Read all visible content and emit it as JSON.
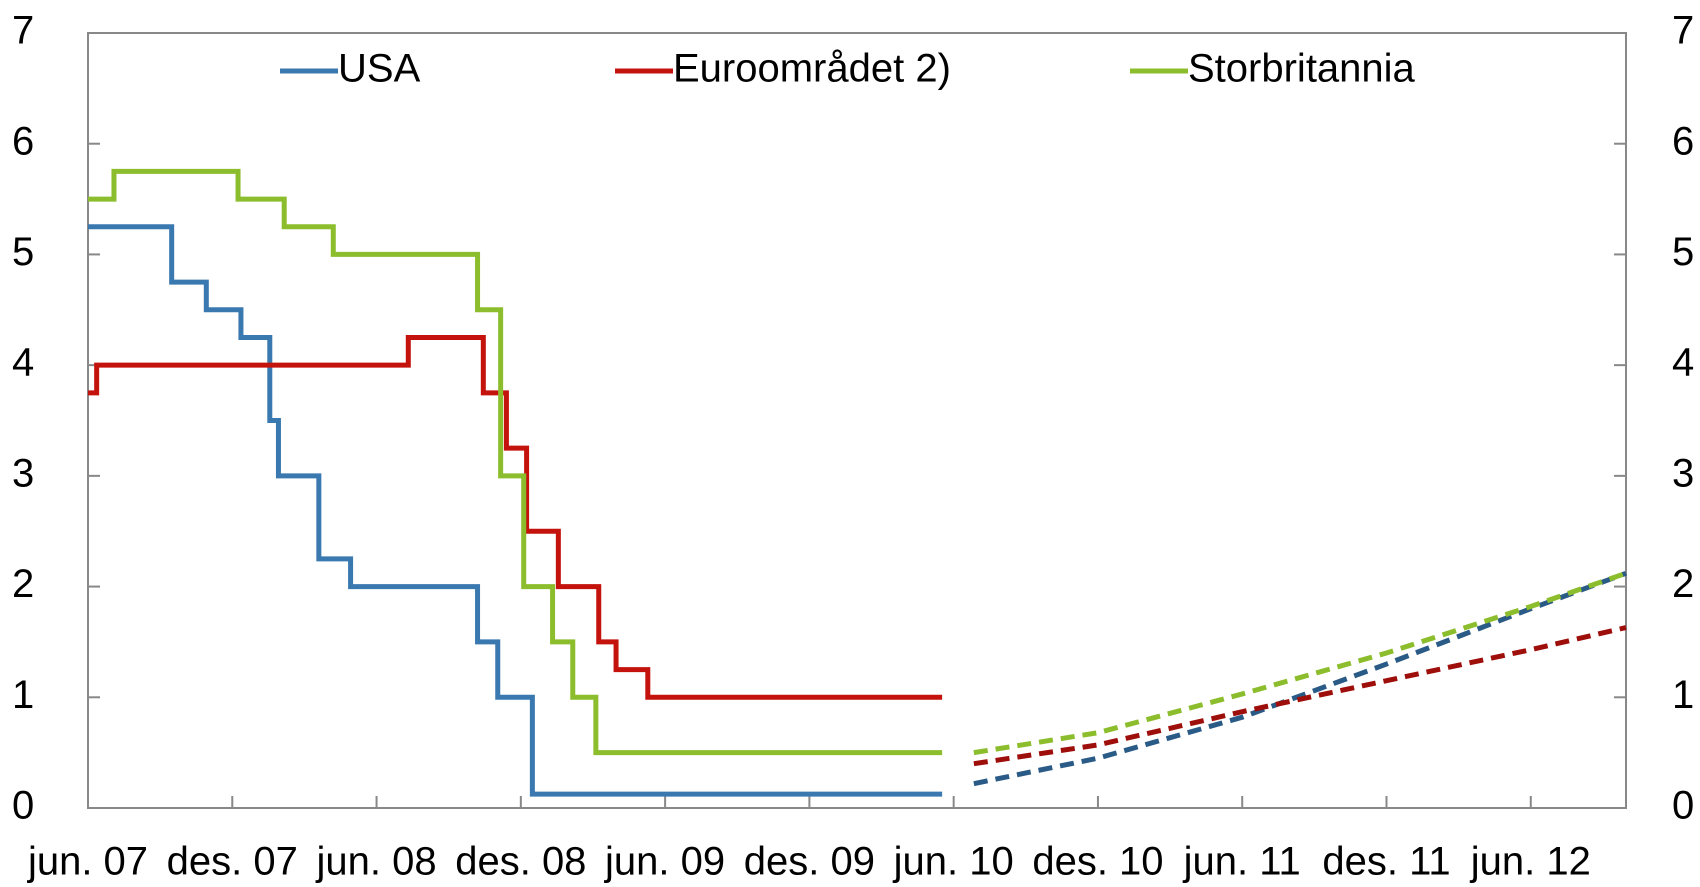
{
  "chart_data": {
    "type": "step",
    "xlim": [
      2007.42,
      2012.75
    ],
    "xticks": [
      {
        "value": 2007.42,
        "label": "jun. 07"
      },
      {
        "value": 2007.92,
        "label": "des. 07"
      },
      {
        "value": 2008.42,
        "label": "jun. 08"
      },
      {
        "value": 2008.92,
        "label": "des. 08"
      },
      {
        "value": 2009.42,
        "label": "jun. 09"
      },
      {
        "value": 2009.92,
        "label": "des. 09"
      },
      {
        "value": 2010.42,
        "label": "jun. 10"
      },
      {
        "value": 2010.92,
        "label": "des. 10"
      },
      {
        "value": 2011.42,
        "label": "jun. 11"
      },
      {
        "value": 2011.92,
        "label": "des. 11"
      },
      {
        "value": 2012.42,
        "label": "jun. 12"
      }
    ],
    "ylim": [
      0,
      7
    ],
    "yticks": [
      0,
      1,
      2,
      3,
      4,
      5,
      6,
      7
    ],
    "series": [
      {
        "name": "USA",
        "color": "#3a78b0",
        "x": [
          2007.42,
          2007.71,
          2007.83,
          2007.95,
          2008.05,
          2008.08,
          2008.22,
          2008.33,
          2008.77,
          2008.84,
          2008.96,
          2010.38
        ],
        "values": [
          5.25,
          4.75,
          4.5,
          4.25,
          3.5,
          3.0,
          2.25,
          2.0,
          1.5,
          1.0,
          0.125,
          0.125
        ],
        "forecast": {
          "color": "#2a5a86",
          "x": [
            2010.49,
            2010.92,
            2011.42,
            2011.92,
            2012.42,
            2012.75
          ],
          "values": [
            0.22,
            0.45,
            0.82,
            1.3,
            1.8,
            2.12
          ]
        }
      },
      {
        "name": "Euroområdet 2)",
        "color": "#c4120c",
        "x": [
          2007.42,
          2007.45,
          2008.53,
          2008.79,
          2008.87,
          2008.94,
          2009.05,
          2009.19,
          2009.25,
          2009.36,
          2010.38
        ],
        "values": [
          3.75,
          4.0,
          4.25,
          3.75,
          3.25,
          2.5,
          2.0,
          1.5,
          1.25,
          1.0,
          1.0
        ],
        "forecast": {
          "color": "#9e0e0a",
          "x": [
            2010.49,
            2010.92,
            2011.42,
            2011.92,
            2012.42,
            2012.75
          ],
          "values": [
            0.4,
            0.57,
            0.87,
            1.15,
            1.43,
            1.63
          ]
        }
      },
      {
        "name": "Storbritannia",
        "color": "#8cbd2c",
        "x": [
          2007.42,
          2007.51,
          2007.94,
          2008.1,
          2008.27,
          2008.77,
          2008.85,
          2008.93,
          2009.03,
          2009.1,
          2009.18,
          2010.38
        ],
        "values": [
          5.5,
          5.75,
          5.5,
          5.25,
          5.0,
          4.5,
          3.0,
          2.0,
          1.5,
          1.0,
          0.5,
          0.5
        ],
        "forecast": {
          "color": "#8cbd2c",
          "x": [
            2010.49,
            2010.92,
            2011.42,
            2011.92,
            2012.42,
            2012.75
          ],
          "values": [
            0.5,
            0.68,
            1.03,
            1.4,
            1.82,
            2.12
          ]
        }
      }
    ]
  }
}
